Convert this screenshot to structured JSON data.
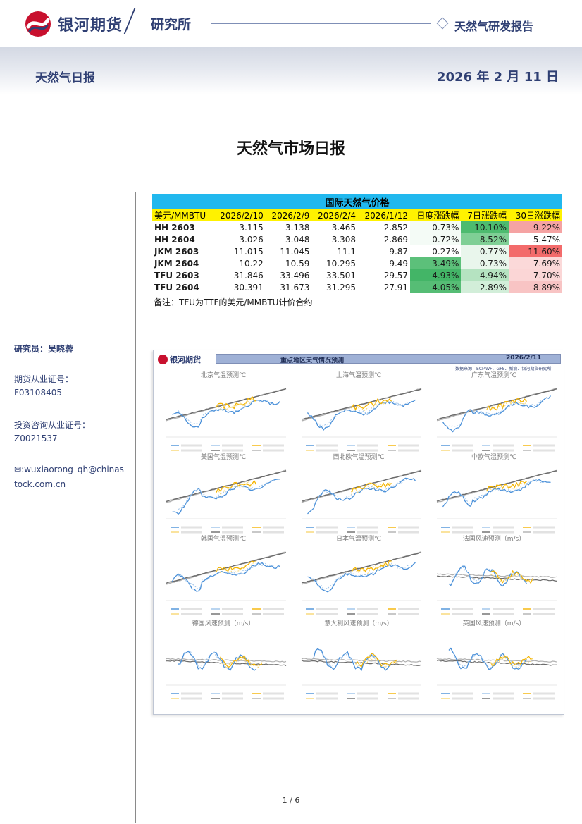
{
  "header": {
    "brand": "银河期货",
    "department": "研究所",
    "report_type": "天然气研发报告",
    "report_name": "天然气日报",
    "date": "2026 年 2 月 11 日"
  },
  "main_title": "天然气市场日报",
  "author": {
    "researcher": "研究员：吴晓蓉",
    "futures_cert_label": "期货从业证号：",
    "futures_cert": "F03108405",
    "advisory_cert_label": "投资咨询从业证号：",
    "advisory_cert": "Z0021537",
    "email_line1": ":wuxiaorong_qh@chinas",
    "email_line2": "tock.com.cn"
  },
  "price_table": {
    "title": "国际天然气价格",
    "headers": [
      "美元/MMBTU",
      "2026/2/10",
      "2026/2/9",
      "2026/2/4",
      "2026/1/12",
      "日度涨跌幅",
      "7日涨跌幅",
      "30日涨跌幅"
    ],
    "rows": [
      [
        "HH 2603",
        "3.115",
        "3.138",
        "3.465",
        "2.852",
        "-0.73%",
        "-10.10%",
        "9.22%"
      ],
      [
        "HH 2604",
        "3.026",
        "3.048",
        "3.308",
        "2.869",
        "-0.72%",
        "-8.52%",
        "5.47%"
      ],
      [
        "JKM 2603",
        "11.015",
        "11.045",
        "11.1",
        "9.87",
        "-0.27%",
        "-0.77%",
        "11.60%"
      ],
      [
        "JKM 2604",
        "10.22",
        "10.59",
        "10.295",
        "9.49",
        "-3.49%",
        "-0.73%",
        "7.69%"
      ],
      [
        "TFU 2603",
        "31.846",
        "33.496",
        "33.501",
        "29.57",
        "-4.93%",
        "-4.94%",
        "7.70%"
      ],
      [
        "TFU 2604",
        "30.391",
        "31.673",
        "31.295",
        "27.91",
        "-4.05%",
        "-2.89%",
        "8.89%"
      ]
    ],
    "cell_colors": [
      [
        null,
        null,
        null,
        null,
        null,
        "#f4fbf6",
        "#4dbb6f",
        "#f5a3a3"
      ],
      [
        null,
        null,
        null,
        null,
        null,
        "#f4fbf6",
        "#7fcf95",
        "#ffffff"
      ],
      [
        null,
        null,
        null,
        null,
        null,
        "#ffffff",
        "#e9f6ec",
        "#f36b6b"
      ],
      [
        null,
        null,
        null,
        null,
        null,
        "#5cc07a",
        "#e9f6ec",
        "#fbd9d9"
      ],
      [
        null,
        null,
        null,
        null,
        null,
        "#43b567",
        "#b5e3c1",
        "#fbd6d6"
      ],
      [
        null,
        null,
        null,
        null,
        null,
        "#56bd75",
        "#d2eed9",
        "#f8c4c4"
      ]
    ],
    "note": "备注：TFU为TTF的美元/MMBTU计价合约"
  },
  "weather": {
    "logo": "银河期货",
    "title": "重点地区天气情况预测",
    "date": "2026/2/11",
    "source": "数据来源：ECMWF、GFS、新浪、银河期货研究所",
    "panels": [
      {
        "title": "北京气温预测℃",
        "kind": "temp"
      },
      {
        "title": "上海气温预测℃",
        "kind": "temp"
      },
      {
        "title": "广东气温预测℃",
        "kind": "temp"
      },
      {
        "title": "美国气温预测℃",
        "kind": "temp"
      },
      {
        "title": "西北欧气温预测℃",
        "kind": "temp"
      },
      {
        "title": "中欧气温预测℃",
        "kind": "temp"
      },
      {
        "title": "韩国气温预测℃",
        "kind": "temp"
      },
      {
        "title": "日本气温预测℃",
        "kind": "temp"
      },
      {
        "title": "法国风速预测（m/s）",
        "kind": "wind"
      },
      {
        "title": "德国风速预测（m/s）",
        "kind": "wind"
      },
      {
        "title": "意大利风速预测（m/s）",
        "kind": "wind"
      },
      {
        "title": "英国风速预测（m/s）",
        "kind": "wind"
      }
    ],
    "line_colors": {
      "ecmwf": "#4a90d9",
      "ecmwf_last": "#9cc3ea",
      "gfs": "#f4b400",
      "gfs_last": "#f7d774",
      "avg5y": "#6b6b6b",
      "avg10y": "#b0b0b0"
    }
  },
  "footer": {
    "page": "1 / 6"
  }
}
